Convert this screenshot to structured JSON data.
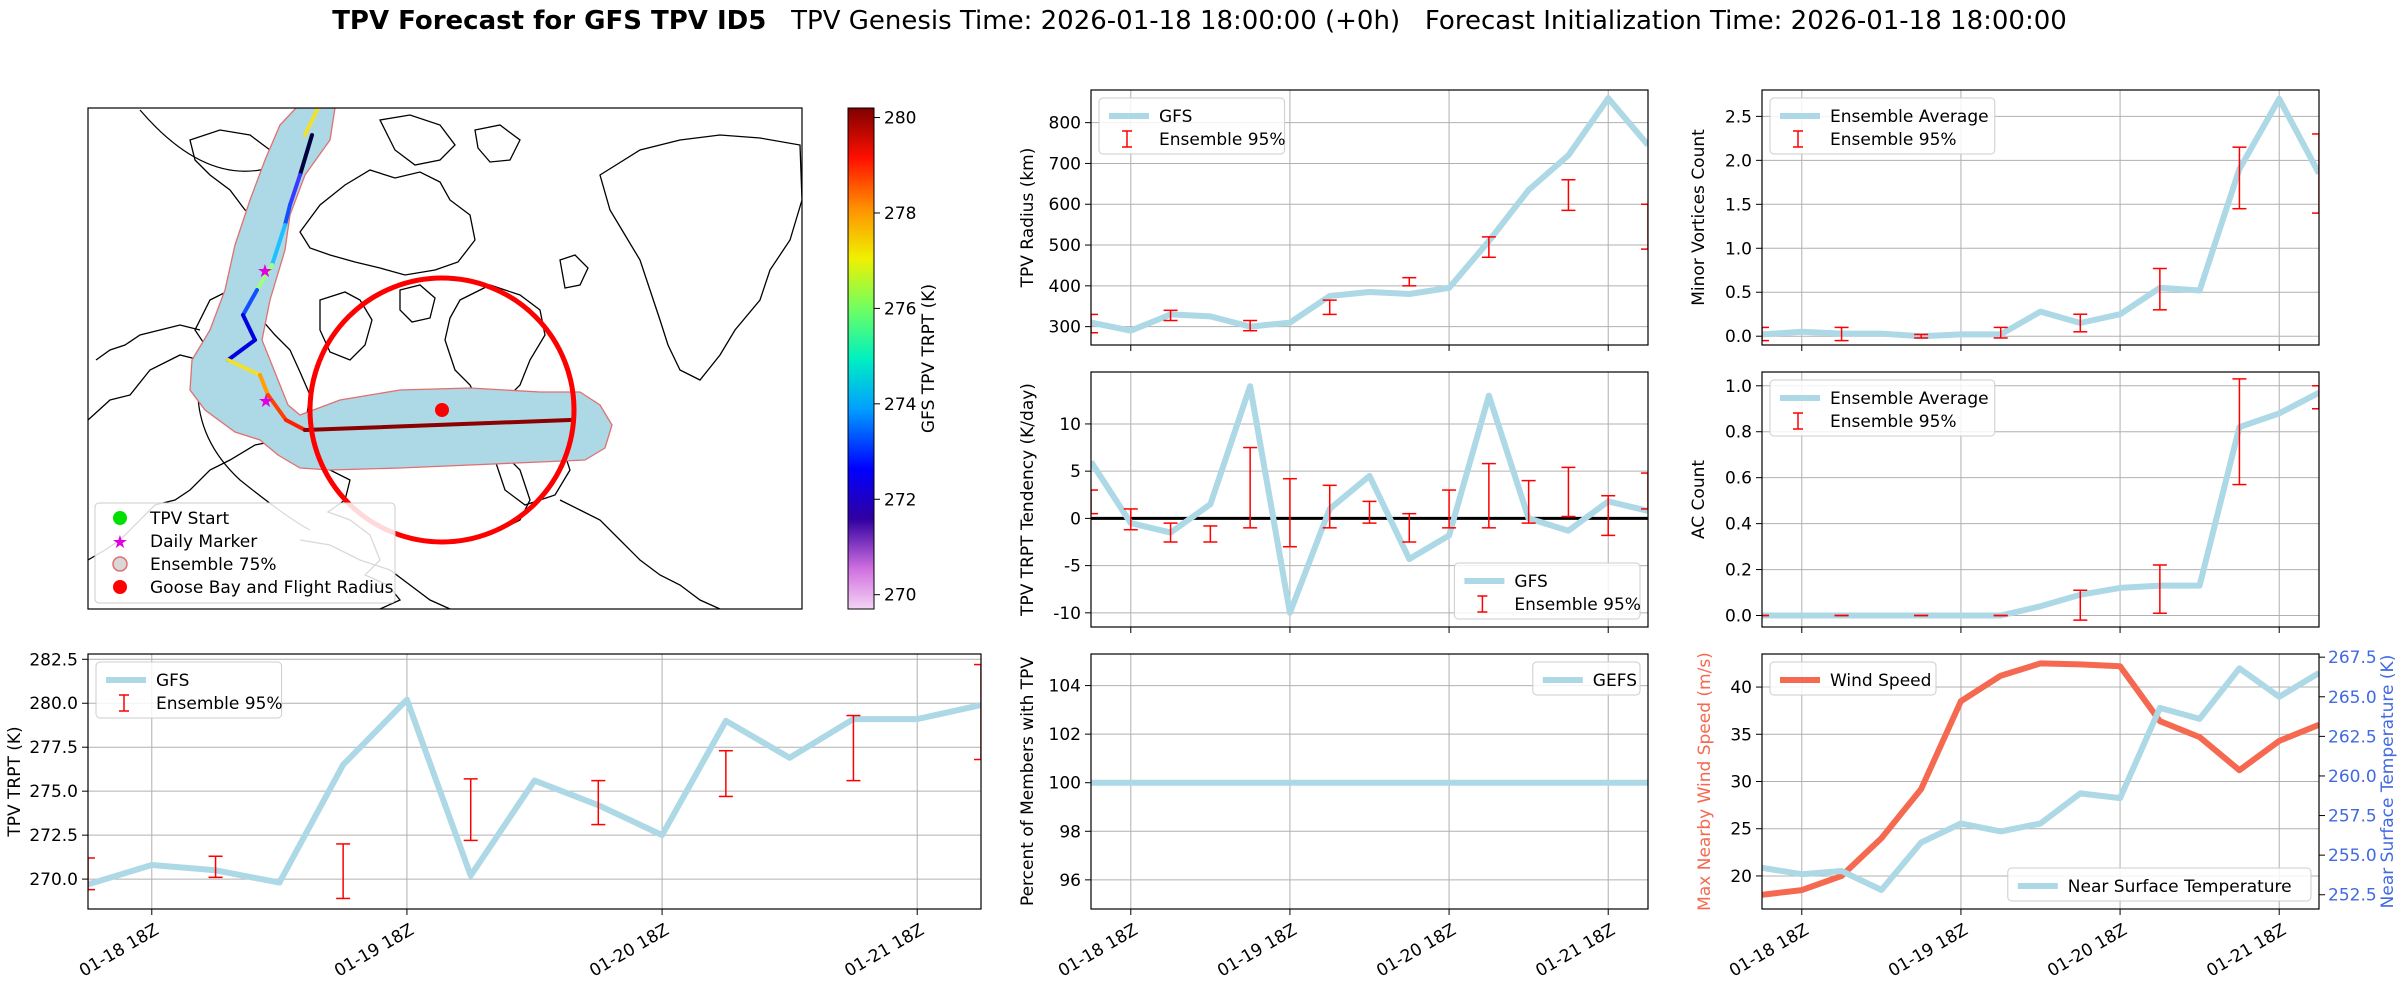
{
  "header": {
    "title_bold": "TPV Forecast for GFS TPV ID5",
    "genesis": "TPV Genesis Time: 2026-01-18 18:00:00 (+0h)",
    "init": "Forecast Initialization Time: 2026-01-18 18:00:00"
  },
  "colors": {
    "gfs_line": "#add8e6",
    "ensemble_error": "#ff0000",
    "wind_line": "#f4694f",
    "temp_axis": "#4169e1",
    "ensemble_area": "#add8e6",
    "track_late": "#8b0000"
  },
  "map_panel": {
    "colorbar": {
      "label": "GFS TPV TRPT (K)",
      "ticks": [
        270,
        272,
        274,
        276,
        278,
        280
      ],
      "vmin": 269.7,
      "vmax": 280.2
    },
    "legend": [
      "TPV Start",
      "Daily Marker",
      "Ensemble 75%",
      "Goose Bay and Flight Radius"
    ]
  },
  "chart_data": [
    {
      "id": "tpv_radius",
      "type": "line",
      "ylabel": "TPV Radius (km)",
      "ylim": [
        255,
        880
      ],
      "yticks": [
        300,
        400,
        500,
        600,
        700,
        800
      ],
      "xticks": [
        "01-18 18Z",
        "01-19 18Z",
        "01-20 18Z",
        "01-21 18Z"
      ],
      "x_hours_max": 84,
      "legend": [
        "GFS",
        "Ensemble 95%"
      ],
      "legend_loc": "top-left",
      "series": [
        {
          "name": "GFS",
          "x": [
            0,
            6,
            12,
            18,
            24,
            30,
            36,
            42,
            48,
            54,
            60,
            66,
            72,
            78,
            84
          ],
          "values": [
            310,
            290,
            330,
            325,
            300,
            310,
            375,
            385,
            380,
            395,
            510,
            635,
            720,
            860,
            745
          ]
        }
      ],
      "errorbars": {
        "x": [
          0,
          12,
          24,
          36,
          48,
          60,
          72,
          84
        ],
        "low": [
          285,
          315,
          290,
          330,
          400,
          470,
          585,
          490
        ],
        "high": [
          330,
          340,
          315,
          365,
          420,
          520,
          660,
          600
        ]
      }
    },
    {
      "id": "minor_vortices",
      "type": "line",
      "ylabel": "Minor Vortices Count",
      "ylim": [
        -0.1,
        2.8
      ],
      "yticks": [
        0.0,
        0.5,
        1.0,
        1.5,
        2.0,
        2.5
      ],
      "xticks": [
        "01-18 18Z",
        "01-19 18Z",
        "01-20 18Z",
        "01-21 18Z"
      ],
      "x_hours_max": 84,
      "legend": [
        "Ensemble Average",
        "Ensemble 95%"
      ],
      "legend_loc": "top-left",
      "series": [
        {
          "name": "Ensemble Average",
          "x": [
            0,
            6,
            12,
            18,
            24,
            30,
            36,
            42,
            48,
            54,
            60,
            66,
            72,
            78,
            84
          ],
          "values": [
            0.02,
            0.05,
            0.03,
            0.03,
            0.0,
            0.02,
            0.02,
            0.28,
            0.15,
            0.25,
            0.55,
            0.52,
            1.9,
            2.7,
            1.85
          ]
        }
      ],
      "errorbars": {
        "x": [
          0,
          12,
          24,
          36,
          48,
          60,
          72,
          84
        ],
        "low": [
          -0.05,
          -0.05,
          -0.02,
          -0.02,
          0.05,
          0.3,
          1.45,
          1.4
        ],
        "high": [
          0.1,
          0.1,
          0.02,
          0.1,
          0.25,
          0.77,
          2.15,
          2.3
        ]
      }
    },
    {
      "id": "trpt_tendency",
      "type": "line",
      "ylabel": "TPV TRPT Tendency (K/day)",
      "ylim": [
        -11.5,
        15.5
      ],
      "yticks": [
        -10,
        -5,
        0,
        5,
        10
      ],
      "xticks": [
        "01-18 18Z",
        "01-19 18Z",
        "01-20 18Z",
        "01-21 18Z"
      ],
      "x_hours_max": 84,
      "zero_line": true,
      "legend": [
        "GFS",
        "Ensemble 95%"
      ],
      "legend_loc": "bottom-right",
      "series": [
        {
          "name": "GFS",
          "x": [
            0,
            6,
            12,
            18,
            24,
            30,
            36,
            42,
            48,
            54,
            60,
            66,
            72,
            78,
            84
          ],
          "values": [
            6,
            -0.5,
            -1.5,
            1.5,
            14,
            -10,
            1,
            4.5,
            -4.3,
            -1.8,
            13,
            0,
            -1.3,
            1.8,
            0.8
          ]
        }
      ],
      "errorbars": {
        "x": [
          0,
          6,
          12,
          18,
          24,
          30,
          36,
          42,
          48,
          54,
          60,
          66,
          72,
          78,
          84
        ],
        "low": [
          0.5,
          -1.2,
          -2.5,
          -2.5,
          -1,
          -3,
          -1,
          -0.5,
          -2.5,
          -1,
          -1,
          -0.5,
          0.2,
          -1.8,
          1
        ],
        "high": [
          3,
          1,
          -0.5,
          -0.8,
          7.5,
          4.2,
          3.5,
          1.8,
          0.5,
          3,
          5.8,
          4,
          5.4,
          2.4,
          4.8
        ]
      }
    },
    {
      "id": "ac_count",
      "type": "line",
      "ylabel": "AC Count",
      "ylim": [
        -0.05,
        1.06
      ],
      "yticks": [
        0.0,
        0.2,
        0.4,
        0.6,
        0.8,
        1.0
      ],
      "xticks": [
        "01-18 18Z",
        "01-19 18Z",
        "01-20 18Z",
        "01-21 18Z"
      ],
      "x_hours_max": 84,
      "legend": [
        "Ensemble Average",
        "Ensemble 95%"
      ],
      "legend_loc": "top-left",
      "series": [
        {
          "name": "Ensemble Average",
          "x": [
            0,
            6,
            12,
            18,
            24,
            30,
            36,
            42,
            48,
            54,
            60,
            66,
            72,
            78,
            84
          ],
          "values": [
            0,
            0,
            0,
            0,
            0,
            0,
            0,
            0.04,
            0.09,
            0.12,
            0.13,
            0.13,
            0.82,
            0.88,
            0.97
          ]
        }
      ],
      "errorbars": {
        "x": [
          0,
          12,
          24,
          36,
          48,
          60,
          72,
          84
        ],
        "low": [
          0,
          0,
          0,
          0,
          -0.02,
          0.01,
          0.57,
          0.9
        ],
        "high": [
          0,
          0,
          0,
          0,
          0.11,
          0.22,
          1.03,
          1.0
        ]
      }
    },
    {
      "id": "tpv_trpt",
      "type": "line",
      "ylabel": "TPV TRPT (K)",
      "ylim": [
        268.3,
        282.8
      ],
      "yticks": [
        270.0,
        272.5,
        275.0,
        277.5,
        280.0,
        282.5
      ],
      "xticks": [
        "01-18 18Z",
        "01-19 18Z",
        "01-20 18Z",
        "01-21 18Z"
      ],
      "x_hours_max": 84,
      "legend": [
        "GFS",
        "Ensemble 95%"
      ],
      "legend_loc": "top-left",
      "series": [
        {
          "name": "GFS",
          "x": [
            0,
            6,
            12,
            18,
            24,
            30,
            36,
            42,
            48,
            54,
            60,
            66,
            72,
            78,
            84
          ],
          "values": [
            269.7,
            270.8,
            270.5,
            269.8,
            276.5,
            280.2,
            270.2,
            275.6,
            274.2,
            272.5,
            279.0,
            276.9,
            279.1,
            279.1,
            279.9
          ]
        }
      ],
      "errorbars": {
        "x": [
          0,
          12,
          24,
          36,
          48,
          60,
          72,
          84
        ],
        "low": [
          269.4,
          270.1,
          268.9,
          272.2,
          273.1,
          274.7,
          275.6,
          276.8
        ],
        "high": [
          271.2,
          271.3,
          272.0,
          275.7,
          275.6,
          277.3,
          279.3,
          282.2
        ]
      }
    },
    {
      "id": "percent_members",
      "type": "line",
      "ylabel": "Percent of Members with TPV",
      "ylim": [
        94.8,
        105.3
      ],
      "yticks": [
        96,
        98,
        100,
        102,
        104
      ],
      "xticks": [
        "01-18 18Z",
        "01-19 18Z",
        "01-20 18Z",
        "01-21 18Z"
      ],
      "x_hours_max": 84,
      "legend": [
        "GEFS"
      ],
      "legend_loc": "top-right",
      "series": [
        {
          "name": "GEFS",
          "x": [
            0,
            84
          ],
          "values": [
            100,
            100
          ]
        }
      ]
    },
    {
      "id": "wind_temp",
      "type": "line",
      "ylabel": "Max Nearby Wind Speed (m/s)",
      "ylabel_right": "Near Surface Temperature (K)",
      "ylim": [
        16.5,
        43.5
      ],
      "ylim_right": [
        251.6,
        267.7
      ],
      "yticks": [
        20,
        25,
        30,
        35,
        40
      ],
      "yticks_right": [
        252.5,
        255.0,
        257.5,
        260.0,
        262.5,
        265.0,
        267.5
      ],
      "xticks": [
        "01-18 18Z",
        "01-19 18Z",
        "01-20 18Z",
        "01-21 18Z"
      ],
      "x_hours_max": 84,
      "legend": [
        "Wind Speed"
      ],
      "legend_right": [
        "Near Surface Temperature"
      ],
      "series": [
        {
          "name": "Wind Speed",
          "axis": "left",
          "x": [
            0,
            6,
            12,
            18,
            24,
            30,
            36,
            42,
            48,
            54,
            60,
            66,
            72,
            78,
            84
          ],
          "values": [
            18.0,
            18.5,
            20.0,
            24.0,
            29.2,
            38.5,
            41.2,
            42.5,
            42.4,
            42.2,
            36.4,
            34.7,
            31.2,
            34.3,
            36.0
          ]
        },
        {
          "name": "Near Surface Temperature",
          "axis": "right",
          "x": [
            0,
            6,
            12,
            18,
            24,
            30,
            36,
            42,
            48,
            54,
            60,
            66,
            72,
            78,
            84
          ],
          "values": [
            254.2,
            253.8,
            254.0,
            252.8,
            255.8,
            257.0,
            256.5,
            257.0,
            258.9,
            258.6,
            264.3,
            263.6,
            266.8,
            265.0,
            266.5
          ]
        }
      ]
    }
  ]
}
